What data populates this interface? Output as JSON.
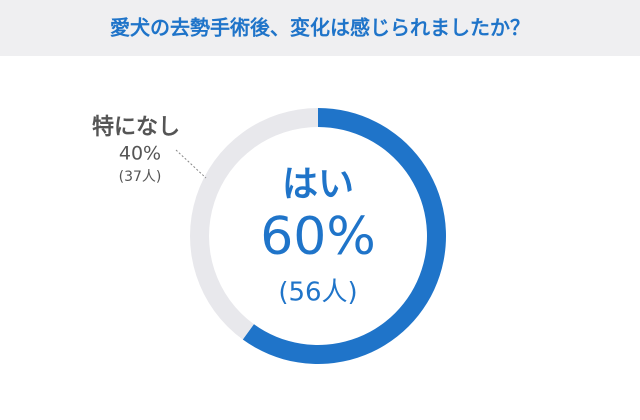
{
  "chart_data": {
    "type": "pie",
    "donut": true,
    "title": "愛犬の去勢手術後、変化は感じられましたか？",
    "categories": [
      "はい",
      "特になし"
    ],
    "values": [
      60,
      40
    ],
    "value_labels": [
      "60%",
      "40%"
    ],
    "count_labels": [
      "(56人)",
      "(37人)"
    ],
    "colors": [
      "#1f74c9",
      "#e8e8ec"
    ]
  }
}
